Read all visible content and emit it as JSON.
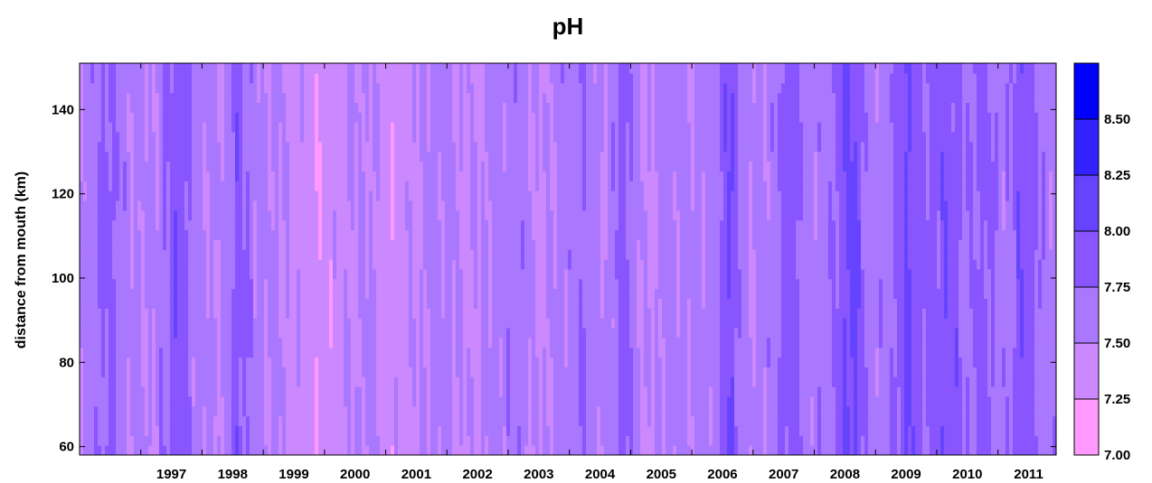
{
  "chart_data": {
    "type": "heatmap",
    "title": "pH",
    "xlabel": "",
    "ylabel": "distance from mouth (km)",
    "x_range": [
      1996.0,
      2011.95
    ],
    "y_range": [
      58,
      151
    ],
    "x_ticks": [
      "1997",
      "1998",
      "1999",
      "2000",
      "2001",
      "2002",
      "2003",
      "2004",
      "2005",
      "2006",
      "2007",
      "2008",
      "2009",
      "2010",
      "2011"
    ],
    "y_ticks": [
      "60",
      "80",
      "100",
      "120",
      "140"
    ],
    "colorbar": {
      "range": [
        7.0,
        8.75
      ],
      "labels": [
        "7.00",
        "7.25",
        "7.50",
        "7.75",
        "8.00",
        "8.25",
        "8.50"
      ],
      "levels": [
        {
          "min": 7.0,
          "max": 7.25,
          "color": "#ff99ff"
        },
        {
          "min": 7.25,
          "max": 7.5,
          "color": "#cc88ff"
        },
        {
          "min": 7.5,
          "max": 7.75,
          "color": "#aa77ff"
        },
        {
          "min": 7.75,
          "max": 8.0,
          "color": "#8855ff"
        },
        {
          "min": 8.0,
          "max": 8.25,
          "color": "#6644ff"
        },
        {
          "min": 8.25,
          "max": 8.5,
          "color": "#3322ff"
        },
        {
          "min": 8.5,
          "max": 8.75,
          "color": "#0000ff"
        }
      ]
    },
    "time_profile": [
      {
        "x": 1996.0,
        "v": 7.55
      },
      {
        "x": 1996.3,
        "v": 7.7
      },
      {
        "x": 1996.5,
        "v": 7.85
      },
      {
        "x": 1996.8,
        "v": 7.55
      },
      {
        "x": 1997.2,
        "v": 7.5
      },
      {
        "x": 1997.6,
        "v": 7.95
      },
      {
        "x": 1997.9,
        "v": 7.6
      },
      {
        "x": 1998.3,
        "v": 7.5
      },
      {
        "x": 1998.6,
        "v": 7.9
      },
      {
        "x": 1998.9,
        "v": 7.55
      },
      {
        "x": 1999.3,
        "v": 7.5
      },
      {
        "x": 1999.6,
        "v": 7.4
      },
      {
        "x": 1999.9,
        "v": 7.3
      },
      {
        "x": 2000.3,
        "v": 7.45
      },
      {
        "x": 2000.7,
        "v": 7.55
      },
      {
        "x": 2001.1,
        "v": 7.35
      },
      {
        "x": 2001.5,
        "v": 7.5
      },
      {
        "x": 2001.9,
        "v": 7.6
      },
      {
        "x": 2002.3,
        "v": 7.45
      },
      {
        "x": 2002.7,
        "v": 7.55
      },
      {
        "x": 2003.1,
        "v": 7.7
      },
      {
        "x": 2003.5,
        "v": 7.45
      },
      {
        "x": 2003.9,
        "v": 7.6
      },
      {
        "x": 2004.2,
        "v": 7.75
      },
      {
        "x": 2004.6,
        "v": 7.5
      },
      {
        "x": 2004.9,
        "v": 7.9
      },
      {
        "x": 2005.2,
        "v": 7.45
      },
      {
        "x": 2005.6,
        "v": 7.6
      },
      {
        "x": 2006.0,
        "v": 7.55
      },
      {
        "x": 2006.4,
        "v": 7.6
      },
      {
        "x": 2006.6,
        "v": 8.05
      },
      {
        "x": 2006.9,
        "v": 7.5
      },
      {
        "x": 2007.3,
        "v": 7.6
      },
      {
        "x": 2007.6,
        "v": 7.95
      },
      {
        "x": 2007.9,
        "v": 7.6
      },
      {
        "x": 2008.3,
        "v": 7.7
      },
      {
        "x": 2008.6,
        "v": 8.1
      },
      {
        "x": 2008.9,
        "v": 7.65
      },
      {
        "x": 2009.2,
        "v": 7.6
      },
      {
        "x": 2009.5,
        "v": 8.05
      },
      {
        "x": 2009.8,
        "v": 7.8
      },
      {
        "x": 2010.2,
        "v": 7.95
      },
      {
        "x": 2010.5,
        "v": 7.7
      },
      {
        "x": 2010.8,
        "v": 7.85
      },
      {
        "x": 2011.1,
        "v": 7.6
      },
      {
        "x": 2011.4,
        "v": 7.95
      },
      {
        "x": 2011.7,
        "v": 7.7
      },
      {
        "x": 2011.95,
        "v": 7.6
      }
    ],
    "grid": false,
    "legend_position": "right colorbar"
  }
}
